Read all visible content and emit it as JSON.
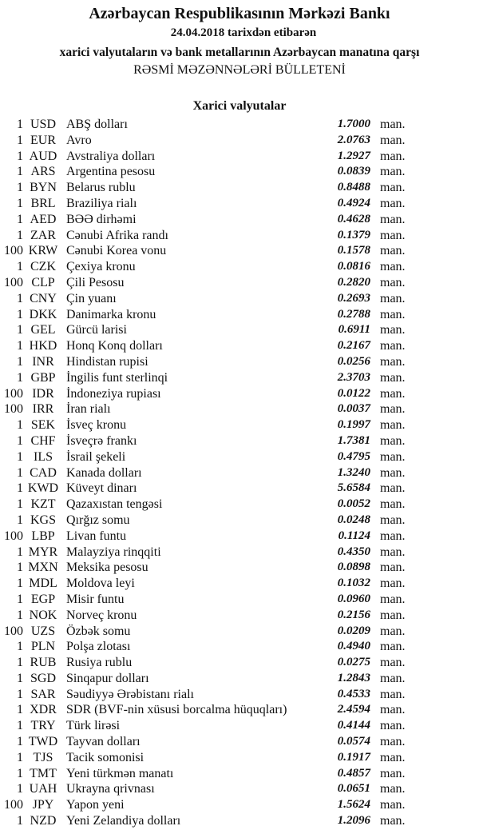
{
  "header": {
    "title": "Azərbaycan Respublikasının Mərkəzi Bankı",
    "date_line": "24.04.2018  tarixdən etibarən",
    "subtitle": "xarici valyutaların və bank metallarının Azərbaycan manatına qarşı",
    "bulletin": "RƏSMİ MƏZƏNNƏLƏRİ BÜLLETENİ"
  },
  "section_title": "Xarici valyutalar",
  "unit_label": "man.",
  "rates": [
    {
      "amount": "1",
      "code": "USD",
      "name": "ABŞ dolları",
      "value": "1.7000"
    },
    {
      "amount": "1",
      "code": "EUR",
      "name": "Avro",
      "value": "2.0763"
    },
    {
      "amount": "1",
      "code": "AUD",
      "name": "Avstraliya dolları",
      "value": "1.2927"
    },
    {
      "amount": "1",
      "code": "ARS",
      "name": "Argentina pesosu",
      "value": "0.0839"
    },
    {
      "amount": "1",
      "code": "BYN",
      "name": "Belarus rublu",
      "value": "0.8488"
    },
    {
      "amount": "1",
      "code": "BRL",
      "name": "Braziliya rialı",
      "value": "0.4924"
    },
    {
      "amount": "1",
      "code": "AED",
      "name": "BƏƏ dirhəmi",
      "value": "0.4628"
    },
    {
      "amount": "1",
      "code": "ZAR",
      "name": "Cənubi Afrika randı",
      "value": "0.1379"
    },
    {
      "amount": "100",
      "code": "KRW",
      "name": "Cənubi Korea vonu",
      "value": "0.1578"
    },
    {
      "amount": "1",
      "code": "CZK",
      "name": "Çexiya kronu",
      "value": "0.0816"
    },
    {
      "amount": "100",
      "code": "CLP",
      "name": "Çili Pesosu",
      "value": "0.2820"
    },
    {
      "amount": "1",
      "code": "CNY",
      "name": "Çin yuanı",
      "value": "0.2693"
    },
    {
      "amount": "1",
      "code": "DKK",
      "name": "Danimarka kronu",
      "value": "0.2788"
    },
    {
      "amount": "1",
      "code": "GEL",
      "name": "Gürcü larisi",
      "value": "0.6911"
    },
    {
      "amount": "1",
      "code": "HKD",
      "name": "Honq Konq dolları",
      "value": "0.2167"
    },
    {
      "amount": "1",
      "code": "INR",
      "name": "Hindistan rupisi",
      "value": "0.0256"
    },
    {
      "amount": "1",
      "code": "GBP",
      "name": "İngilis funt sterlinqi",
      "value": "2.3703"
    },
    {
      "amount": "100",
      "code": "IDR",
      "name": "İndoneziya rupiası",
      "value": "0.0122"
    },
    {
      "amount": "100",
      "code": "IRR",
      "name": "İran rialı",
      "value": "0.0037"
    },
    {
      "amount": "1",
      "code": "SEK",
      "name": "İsveç kronu",
      "value": "0.1997"
    },
    {
      "amount": "1",
      "code": "CHF",
      "name": "İsveçrə frankı",
      "value": "1.7381"
    },
    {
      "amount": "1",
      "code": "ILS",
      "name": "İsrail şekeli",
      "value": "0.4795"
    },
    {
      "amount": "1",
      "code": "CAD",
      "name": "Kanada dolları",
      "value": "1.3240"
    },
    {
      "amount": "1",
      "code": "KWD",
      "name": "Küveyt dinarı",
      "value": "5.6584"
    },
    {
      "amount": "1",
      "code": "KZT",
      "name": "Qazaxıstan tengəsi",
      "value": "0.0052"
    },
    {
      "amount": "1",
      "code": "KGS",
      "name": "Qırğız somu",
      "value": "0.0248"
    },
    {
      "amount": "100",
      "code": "LBP",
      "name": "Livan funtu",
      "value": "0.1124"
    },
    {
      "amount": "1",
      "code": "MYR",
      "name": "Malayziya rinqqiti",
      "value": "0.4350"
    },
    {
      "amount": "1",
      "code": "MXN",
      "name": "Meksika pesosu",
      "value": "0.0898"
    },
    {
      "amount": "1",
      "code": "MDL",
      "name": "Moldova leyi",
      "value": "0.1032"
    },
    {
      "amount": "1",
      "code": "EGP",
      "name": "Misir funtu",
      "value": "0.0960"
    },
    {
      "amount": "1",
      "code": "NOK",
      "name": "Norveç kronu",
      "value": "0.2156"
    },
    {
      "amount": "100",
      "code": "UZS",
      "name": "Özbək somu",
      "value": "0.0209"
    },
    {
      "amount": "1",
      "code": "PLN",
      "name": "Polşa zlotası",
      "value": "0.4940"
    },
    {
      "amount": "1",
      "code": "RUB",
      "name": "Rusiya rublu",
      "value": "0.0275"
    },
    {
      "amount": "1",
      "code": "SGD",
      "name": "Sinqapur dolları",
      "value": "1.2843"
    },
    {
      "amount": "1",
      "code": "SAR",
      "name": "Səudiyyə Ərəbistanı rialı",
      "value": "0.4533"
    },
    {
      "amount": "1",
      "code": "XDR",
      "name": "SDR (BVF-nin xüsusi borcalma hüquqları)",
      "value": "2.4594"
    },
    {
      "amount": "1",
      "code": "TRY",
      "name": "Türk lirəsi",
      "value": "0.4144"
    },
    {
      "amount": "1",
      "code": "TWD",
      "name": "Tayvan dolları",
      "value": "0.0574"
    },
    {
      "amount": "1",
      "code": "TJS",
      "name": "Tacik somonisi",
      "value": "0.1917"
    },
    {
      "amount": "1",
      "code": "TMT",
      "name": "Yeni türkmən manatı",
      "value": "0.4857"
    },
    {
      "amount": "1",
      "code": "UAH",
      "name": "Ukrayna qrivnası",
      "value": "0.0651"
    },
    {
      "amount": "100",
      "code": "JPY",
      "name": "Yapon yeni",
      "value": "1.5624"
    },
    {
      "amount": "1",
      "code": "NZD",
      "name": "Yeni Zelandiya dolları",
      "value": "1.2096"
    }
  ]
}
